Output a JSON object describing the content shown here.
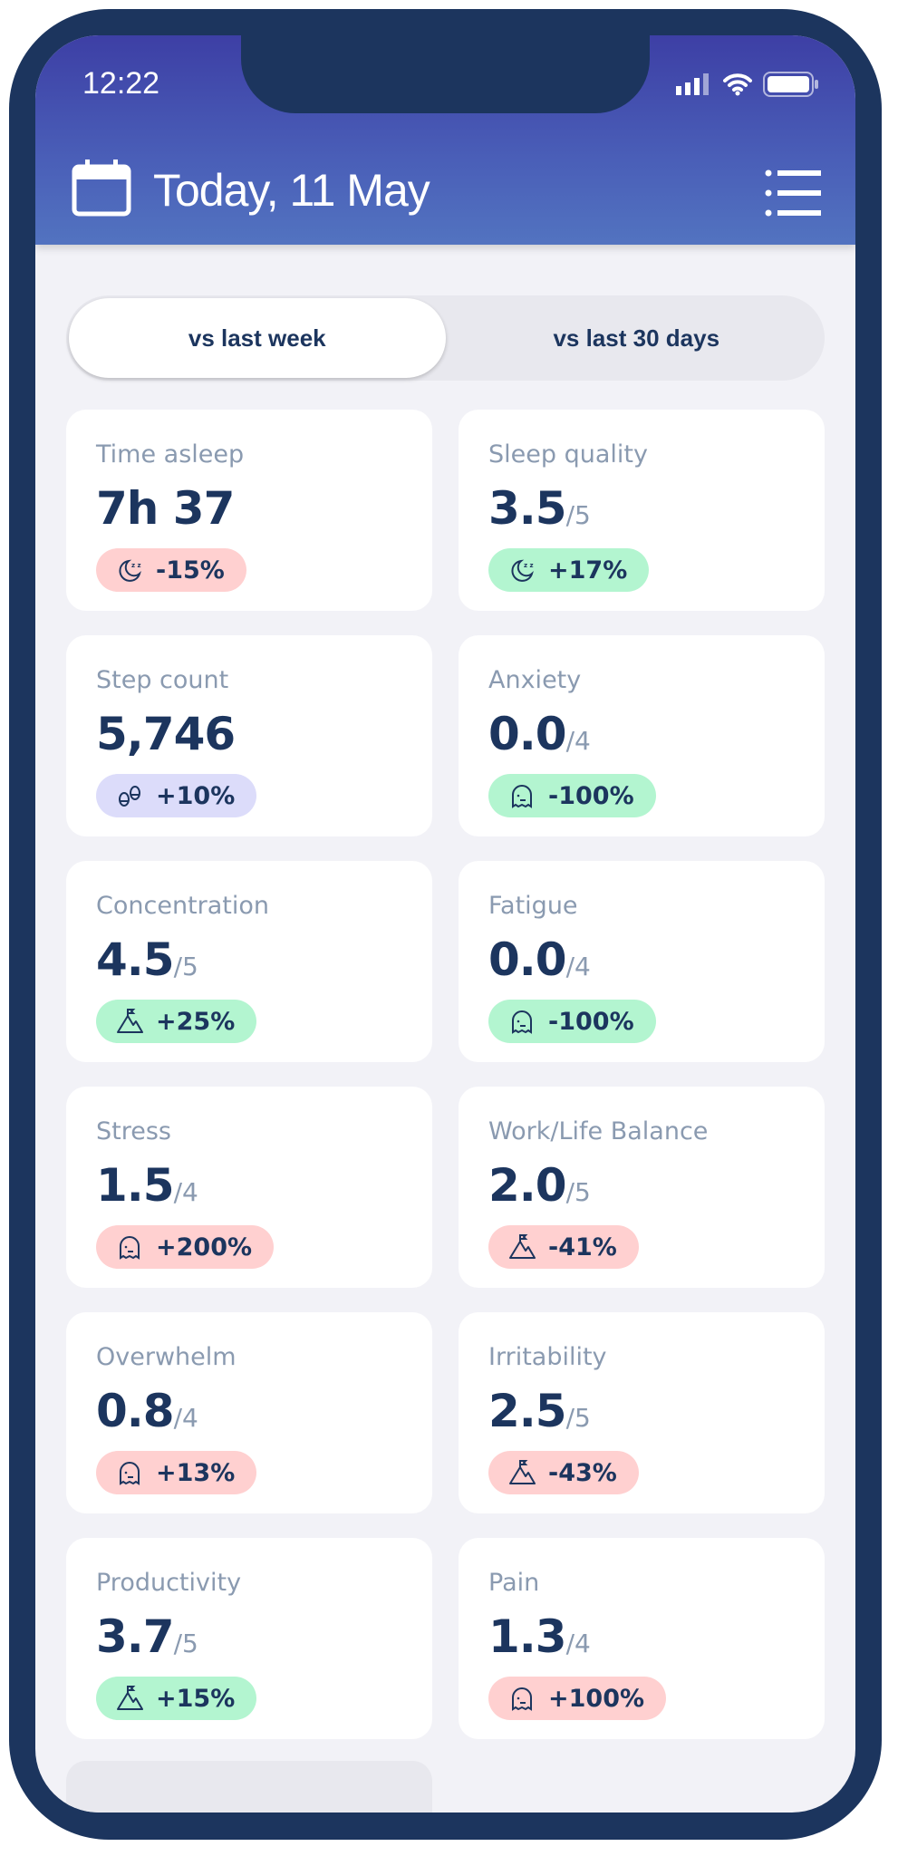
{
  "status_bar": {
    "time": "12:22"
  },
  "header": {
    "title": "Today, 11 May"
  },
  "toggle": {
    "options": [
      "vs last week",
      "vs last 30 days"
    ],
    "selected": 0
  },
  "colors": {
    "frame": "#1c355e",
    "text": "#1c355e",
    "negative": "#ffd0d0",
    "positive": "#b3f5d0",
    "neutral": "#dcdcfa"
  },
  "cards": [
    {
      "label": "Time asleep",
      "value": "7h 37",
      "denom": "",
      "change": "-15%",
      "icon": "moon-icon",
      "tone": "negative"
    },
    {
      "label": "Sleep quality",
      "value": "3.5",
      "denom": "/5",
      "change": "+17%",
      "icon": "moon-icon",
      "tone": "positive"
    },
    {
      "label": "Step count",
      "value": "5,746",
      "denom": "",
      "change": "+10%",
      "icon": "footprints-icon",
      "tone": "neutral"
    },
    {
      "label": "Anxiety",
      "value": "0.0",
      "denom": "/4",
      "change": "-100%",
      "icon": "ghost-icon",
      "tone": "positive"
    },
    {
      "label": "Concentration",
      "value": "4.5",
      "denom": "/5",
      "change": "+25%",
      "icon": "mountain-flag-icon",
      "tone": "positive"
    },
    {
      "label": "Fatigue",
      "value": "0.0",
      "denom": "/4",
      "change": "-100%",
      "icon": "ghost-icon",
      "tone": "positive"
    },
    {
      "label": "Stress",
      "value": "1.5",
      "denom": "/4",
      "change": "+200%",
      "icon": "ghost-icon",
      "tone": "negative"
    },
    {
      "label": "Work/Life Balance",
      "value": "2.0",
      "denom": "/5",
      "change": "-41%",
      "icon": "mountain-flag-icon",
      "tone": "negative"
    },
    {
      "label": "Overwhelm",
      "value": "0.8",
      "denom": "/4",
      "change": "+13%",
      "icon": "ghost-icon",
      "tone": "negative"
    },
    {
      "label": "Irritability",
      "value": "2.5",
      "denom": "/5",
      "change": "-43%",
      "icon": "mountain-flag-icon",
      "tone": "negative"
    },
    {
      "label": "Productivity",
      "value": "3.7",
      "denom": "/5",
      "change": "+15%",
      "icon": "mountain-flag-icon",
      "tone": "positive"
    },
    {
      "label": "Pain",
      "value": "1.3",
      "denom": "/4",
      "change": "+100%",
      "icon": "ghost-icon",
      "tone": "negative"
    }
  ]
}
